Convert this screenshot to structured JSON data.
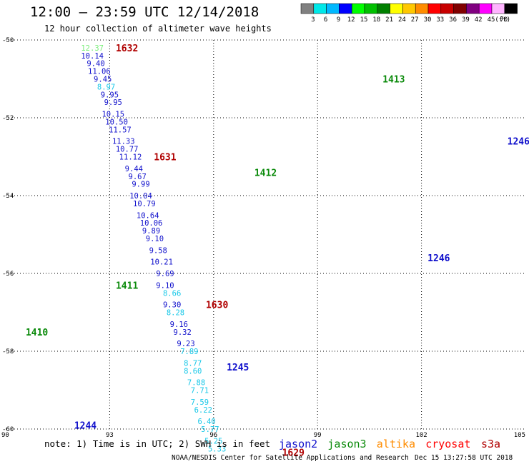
{
  "title": "12:00 – 23:59 UTC 12/14/2018",
  "subtitle": "12 hour collection of altimeter wave heights",
  "footer": {
    "note": "note: 1) Time is in UTC; 2) SWH is in feet",
    "credit": "NOAA/NESDIS Center for Satellite Applications and Research",
    "stamp": "Dec 15 13:27:58 UTC 2018",
    "satellites": [
      {
        "name": "jason2",
        "color": "#1010cc"
      },
      {
        "name": "jason3",
        "color": "#0a8a0a"
      },
      {
        "name": "altika",
        "color": "#ff8c00"
      },
      {
        "name": "cryosat",
        "color": "#ff0000"
      },
      {
        "name": "s3a",
        "color": "#b00000"
      }
    ]
  },
  "legend": {
    "unit": "(ft)",
    "bins": [
      {
        "label": "3",
        "color": "#808080"
      },
      {
        "label": "6",
        "color": "#00e8e8"
      },
      {
        "label": "9",
        "color": "#00b8ff"
      },
      {
        "label": "12",
        "color": "#0000ff"
      },
      {
        "label": "15",
        "color": "#00ff00"
      },
      {
        "label": "18",
        "color": "#00c000"
      },
      {
        "label": "21",
        "color": "#008000"
      },
      {
        "label": "24",
        "color": "#ffff00"
      },
      {
        "label": "27",
        "color": "#ffc800"
      },
      {
        "label": "30",
        "color": "#ff8c00"
      },
      {
        "label": "33",
        "color": "#ff0000"
      },
      {
        "label": "36",
        "color": "#c80000"
      },
      {
        "label": "39",
        "color": "#800000"
      },
      {
        "label": "42",
        "color": "#800080"
      },
      {
        "label": "45",
        "color": "#ff00ff"
      },
      {
        "label": "70",
        "color": "#ffb4ff"
      },
      {
        "label": "",
        "color": "#000000"
      }
    ]
  },
  "chart_data": {
    "type": "scatter",
    "xlim": [
      90,
      105
    ],
    "ylim": [
      -60,
      -50
    ],
    "xticks": [
      "90",
      "93",
      "96",
      "99",
      "102",
      "105"
    ],
    "yticks": [
      "-50",
      "-52",
      "-54",
      "-56",
      "-58",
      "-60"
    ],
    "grid": true,
    "colors": {
      "j2": "#1010cc",
      "j3": "#0a8a0a",
      "s3a": "#b00000",
      "cyan": "#18c8e8",
      "lightgreen": "#7cee7c"
    },
    "series": [
      {
        "name": "jason2",
        "points": [
          {
            "x": 92.5,
            "y": -50.2,
            "v": "12.37",
            "c": "lightgreen"
          },
          {
            "x": 92.5,
            "y": -50.4,
            "v": "10.14",
            "c": "j2"
          },
          {
            "x": 92.6,
            "y": -50.6,
            "v": "9.40",
            "c": "j2"
          },
          {
            "x": 92.7,
            "y": -50.8,
            "v": "11.06",
            "c": "j2"
          },
          {
            "x": 92.8,
            "y": -51.0,
            "v": "9.45",
            "c": "j2"
          },
          {
            "x": 92.9,
            "y": -51.2,
            "v": "8.97",
            "c": "cyan"
          },
          {
            "x": 93.0,
            "y": -51.4,
            "v": "9.95",
            "c": "j2"
          },
          {
            "x": 93.1,
            "y": -51.6,
            "v": "9.95",
            "c": "j2"
          },
          {
            "x": 93.1,
            "y": -51.9,
            "v": "10.15",
            "c": "j2"
          },
          {
            "x": 93.2,
            "y": -52.1,
            "v": "10.50",
            "c": "j2"
          },
          {
            "x": 93.3,
            "y": -52.3,
            "v": "11.57",
            "c": "j2"
          },
          {
            "x": 93.4,
            "y": -52.6,
            "v": "11.33",
            "c": "j2"
          },
          {
            "x": 93.5,
            "y": -52.8,
            "v": "10.77",
            "c": "j2"
          },
          {
            "x": 93.6,
            "y": -53.0,
            "v": "11.12",
            "c": "j2"
          },
          {
            "x": 93.7,
            "y": -53.3,
            "v": "9.44",
            "c": "j2"
          },
          {
            "x": 93.8,
            "y": -53.5,
            "v": "9.67",
            "c": "j2"
          },
          {
            "x": 93.9,
            "y": -53.7,
            "v": "9.99",
            "c": "j2"
          },
          {
            "x": 93.9,
            "y": -54.0,
            "v": "10.04",
            "c": "j2"
          },
          {
            "x": 94.0,
            "y": -54.2,
            "v": "10.79",
            "c": "j2"
          },
          {
            "x": 94.1,
            "y": -54.5,
            "v": "10.64",
            "c": "j2"
          },
          {
            "x": 94.2,
            "y": -54.7,
            "v": "10.06",
            "c": "j2"
          },
          {
            "x": 94.2,
            "y": -54.9,
            "v": "9.89",
            "c": "j2"
          },
          {
            "x": 94.3,
            "y": -55.1,
            "v": "9.10",
            "c": "j2"
          },
          {
            "x": 94.4,
            "y": -55.4,
            "v": "9.58",
            "c": "j2"
          },
          {
            "x": 94.5,
            "y": -55.7,
            "v": "10.21",
            "c": "j2"
          },
          {
            "x": 94.6,
            "y": -56.0,
            "v": "9.69",
            "c": "j2"
          },
          {
            "x": 94.6,
            "y": -56.3,
            "v": "9.10",
            "c": "j2"
          },
          {
            "x": 94.8,
            "y": -56.5,
            "v": "8.66",
            "c": "cyan"
          },
          {
            "x": 94.8,
            "y": -56.8,
            "v": "9.30",
            "c": "j2"
          },
          {
            "x": 94.9,
            "y": -57.0,
            "v": "8.28",
            "c": "cyan"
          },
          {
            "x": 95.0,
            "y": -57.3,
            "v": "9.16",
            "c": "j2"
          },
          {
            "x": 95.1,
            "y": -57.5,
            "v": "9.32",
            "c": "j2"
          },
          {
            "x": 95.2,
            "y": -57.8,
            "v": "9.23",
            "c": "j2"
          },
          {
            "x": 95.3,
            "y": -58.0,
            "v": "7.89",
            "c": "cyan"
          },
          {
            "x": 95.4,
            "y": -58.3,
            "v": "8.77",
            "c": "cyan"
          },
          {
            "x": 95.4,
            "y": -58.5,
            "v": "8.60",
            "c": "cyan"
          },
          {
            "x": 95.5,
            "y": -58.8,
            "v": "7.88",
            "c": "cyan"
          },
          {
            "x": 95.6,
            "y": -59.0,
            "v": "7.71",
            "c": "cyan"
          },
          {
            "x": 95.6,
            "y": -59.3,
            "v": "7.59",
            "c": "cyan"
          },
          {
            "x": 95.7,
            "y": -59.5,
            "v": "6.22",
            "c": "cyan"
          },
          {
            "x": 95.8,
            "y": -59.8,
            "v": "6.40",
            "c": "cyan"
          },
          {
            "x": 95.9,
            "y": -60.0,
            "v": "5.77",
            "c": "cyan"
          },
          {
            "x": 96.0,
            "y": -60.3,
            "v": "5.25",
            "c": "cyan"
          },
          {
            "x": 96.1,
            "y": -60.5,
            "v": "5.33",
            "c": "cyan"
          }
        ]
      }
    ],
    "pass_labels": [
      {
        "text": "1632",
        "x": 93.5,
        "y": -50.2,
        "c": "s3a"
      },
      {
        "text": "1631",
        "x": 94.6,
        "y": -53.0,
        "c": "s3a"
      },
      {
        "text": "1630",
        "x": 96.1,
        "y": -56.8,
        "c": "s3a"
      },
      {
        "text": "1629",
        "x": 98.3,
        "y": -60.6,
        "c": "s3a"
      },
      {
        "text": "1413",
        "x": 101.2,
        "y": -51.0,
        "c": "j3"
      },
      {
        "text": "1412",
        "x": 97.5,
        "y": -53.4,
        "c": "j3"
      },
      {
        "text": "1411",
        "x": 93.5,
        "y": -56.3,
        "c": "j3"
      },
      {
        "text": "1410",
        "x": 90.9,
        "y": -57.5,
        "c": "j3"
      },
      {
        "text": "1246",
        "x": 102.5,
        "y": -55.6,
        "c": "j2"
      },
      {
        "text": "1245",
        "x": 96.7,
        "y": -58.4,
        "c": "j2"
      },
      {
        "text": "1244",
        "x": 92.3,
        "y": -59.9,
        "c": "j2"
      },
      {
        "text": "1246",
        "x": 104.8,
        "y": -52.6,
        "c": "j2"
      }
    ]
  }
}
